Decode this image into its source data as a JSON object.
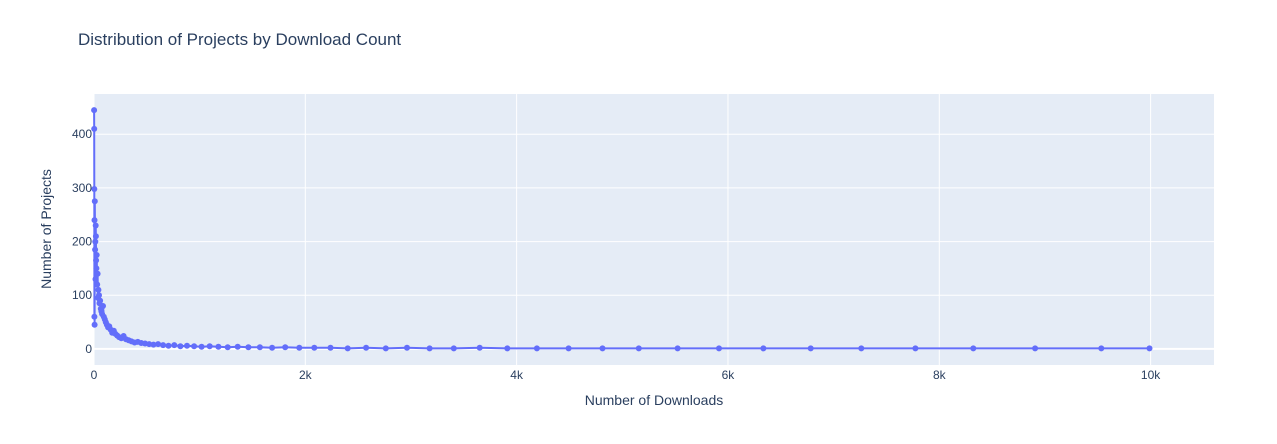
{
  "chart_data": {
    "type": "line",
    "mode": "lines+markers",
    "title": "Distribution of Projects by Download Count",
    "xlabel": "Number of Downloads",
    "ylabel": "Number of Projects",
    "xlim": [
      0,
      10600
    ],
    "ylim": [
      -30,
      475
    ],
    "xticks": [
      0,
      2000,
      4000,
      6000,
      8000,
      10000
    ],
    "xtick_labels": [
      "0",
      "2k",
      "4k",
      "6k",
      "8k",
      "10k"
    ],
    "yticks": [
      0,
      100,
      200,
      300,
      400
    ],
    "ytick_labels": [
      "0",
      "100",
      "200",
      "300",
      "400"
    ],
    "grid": true,
    "legend": false,
    "colors": {
      "series": "#636efa",
      "plot_bg": "#e5ecf6",
      "grid": "#ffffff",
      "text": "#2a3f5f"
    },
    "series": [
      {
        "values_note_free": true,
        "x": [
          1,
          2,
          3,
          4,
          5,
          6,
          8,
          10,
          12,
          14,
          16,
          18,
          20,
          23,
          26,
          30,
          34,
          38,
          42,
          47,
          52,
          58,
          64,
          70,
          77,
          85,
          93,
          102,
          112,
          122,
          133,
          145,
          158,
          172,
          187,
          203,
          220,
          238,
          258,
          280,
          303,
          328,
          355,
          384,
          415,
          448,
          484,
          522,
          563,
          607,
          654,
          705,
          760,
          818,
          880,
          947,
          1018,
          1095,
          1177,
          1265,
          1360,
          1461,
          1570,
          1686,
          1810,
          1943,
          2085,
          2238,
          2401,
          2575,
          2762,
          2962,
          3176,
          3405,
          3650,
          3912,
          4192,
          4492,
          4813,
          5156,
          5523,
          5915,
          6335,
          6783,
          7262,
          7774,
          8322,
          8907,
          9533,
          9990
        ],
        "y": [
          445,
          410,
          298,
          60,
          240,
          45,
          275,
          185,
          200,
          130,
          230,
          210,
          165,
          150,
          175,
          120,
          140,
          95,
          110,
          100,
          85,
          90,
          75,
          70,
          65,
          80,
          60,
          55,
          50,
          45,
          40,
          42,
          36,
          30,
          34,
          28,
          25,
          22,
          20,
          24,
          18,
          16,
          14,
          12,
          13,
          11,
          10,
          9,
          8,
          9,
          7,
          6,
          7,
          5,
          6,
          5,
          4,
          5,
          4,
          3,
          4,
          3,
          3,
          2,
          3,
          2,
          2,
          2,
          1,
          2,
          1,
          2,
          1,
          1,
          2,
          1,
          1,
          1,
          1,
          1,
          1,
          1,
          1,
          1,
          1,
          1,
          1,
          1,
          1,
          1
        ]
      }
    ]
  }
}
